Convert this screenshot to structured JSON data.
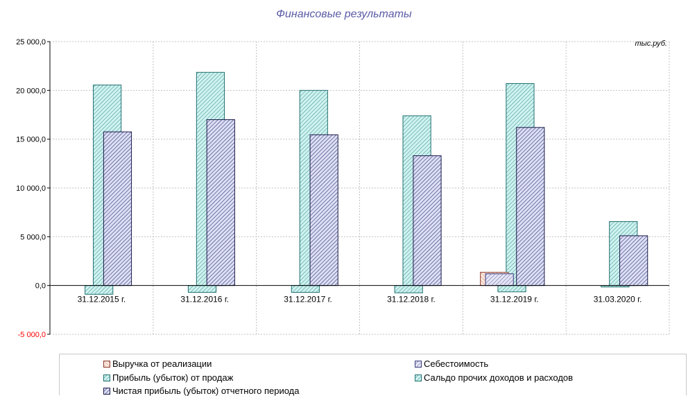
{
  "chart_data": {
    "type": "bar",
    "title": "Финансовые результаты",
    "unit_label": "тыс.руб.",
    "categories": [
      "31.12.2015 г.",
      "31.12.2016 г.",
      "31.12.2017 г.",
      "31.12.2018 г.",
      "31.12.2019 г.",
      "31.03.2020 г."
    ],
    "ylim": [
      -5000,
      25000
    ],
    "yticks": [
      -5000,
      0,
      5000,
      10000,
      15000,
      20000,
      25000
    ],
    "ytick_labels": [
      "-5 000,0",
      "0,0",
      "5 000,0",
      "10 000,0",
      "15 000,0",
      "20 000,0",
      "25 000,0"
    ],
    "grid": true,
    "legend_position": "bottom",
    "series": [
      {
        "name": "Выручка от реализации",
        "color": "#c8826e",
        "fill": "#fde9e0",
        "values": [
          0,
          0,
          0,
          0,
          1350,
          0
        ]
      },
      {
        "name": "Себестоимость",
        "color": "#5a5aa6",
        "fill": "#e6e6f5",
        "values": [
          0,
          0,
          0,
          0,
          1200,
          0
        ]
      },
      {
        "name": "Прибыль (убыток) от продаж",
        "color": "#2e8b8b",
        "fill": "#cff2ef",
        "values": [
          20550,
          21850,
          20000,
          17400,
          20700,
          6550
        ]
      },
      {
        "name": "Сальдо прочих доходов и расходов",
        "color": "#2e8b8b",
        "fill": "#cff2ef",
        "values": [
          -900,
          -700,
          -700,
          -750,
          -650,
          -150
        ]
      },
      {
        "name": "Чистая прибыль (убыток) отчетного периода",
        "color": "#3a3a7a",
        "fill": "#dde0f5",
        "values": [
          15750,
          17000,
          15450,
          13300,
          16200,
          5100
        ]
      }
    ]
  }
}
